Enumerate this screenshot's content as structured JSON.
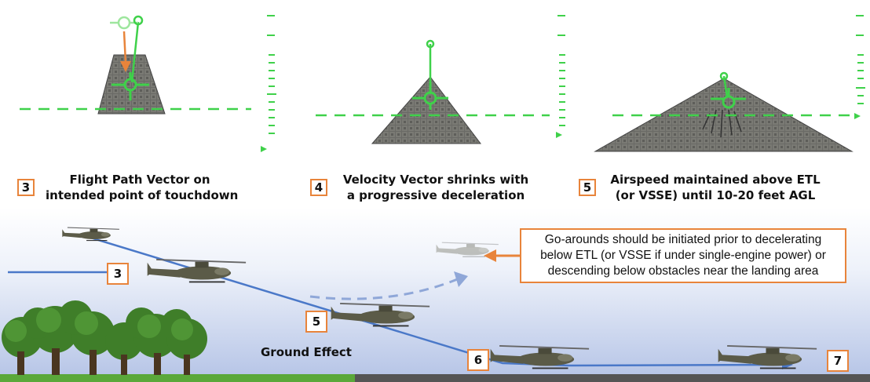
{
  "panels": [
    {
      "number": "3",
      "caption_line1": "Flight Path Vector on",
      "caption_line2": "intended point of touchdown"
    },
    {
      "number": "4",
      "caption_line1": "Velocity Vector shrinks with",
      "caption_line2": "a progressive deceleration"
    },
    {
      "number": "5",
      "caption_line1": "Airspeed maintained above ETL",
      "caption_line2": "(or VSSE) until 10-20 feet AGL"
    }
  ],
  "profile": {
    "markers": [
      "3",
      "5",
      "6",
      "7"
    ],
    "ground_effect_label": "Ground Effect",
    "go_around_note": {
      "line1": "Go-arounds should be initiated prior to decelerating",
      "line2": "below ETL (or VSSE if under single-engine power) or",
      "line3": "descending below obstacles near the landing area"
    }
  },
  "colors": {
    "hud_green": "#3fd14a",
    "accent_orange": "#e8843b",
    "flight_path_blue": "#4a78c8",
    "grass_green": "#5aa83a",
    "runway_gray": "#555555"
  }
}
